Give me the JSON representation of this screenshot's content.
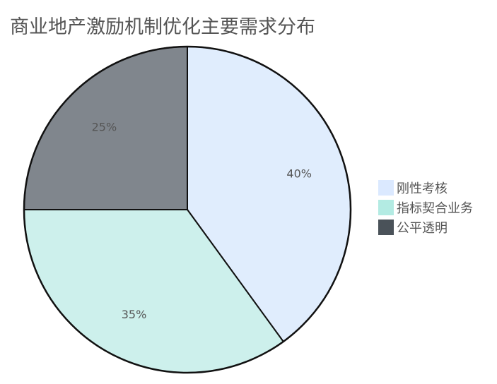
{
  "chart_data": {
    "type": "pie",
    "title": "商业地产激励机制优化主要需求分布",
    "legend_position": "right",
    "slices": [
      {
        "label": "刚性考核",
        "value": 40,
        "display": "40%",
        "color": "#dbe9ff",
        "fill": "#e0edfd"
      },
      {
        "label": "指标契合业务",
        "value": 35,
        "display": "35%",
        "color": "#b3ebe3",
        "fill": "#cdf0ec"
      },
      {
        "label": "公平透明",
        "value": 25,
        "display": "25%",
        "color": "#4a5259",
        "fill": "#80868d"
      }
    ]
  }
}
